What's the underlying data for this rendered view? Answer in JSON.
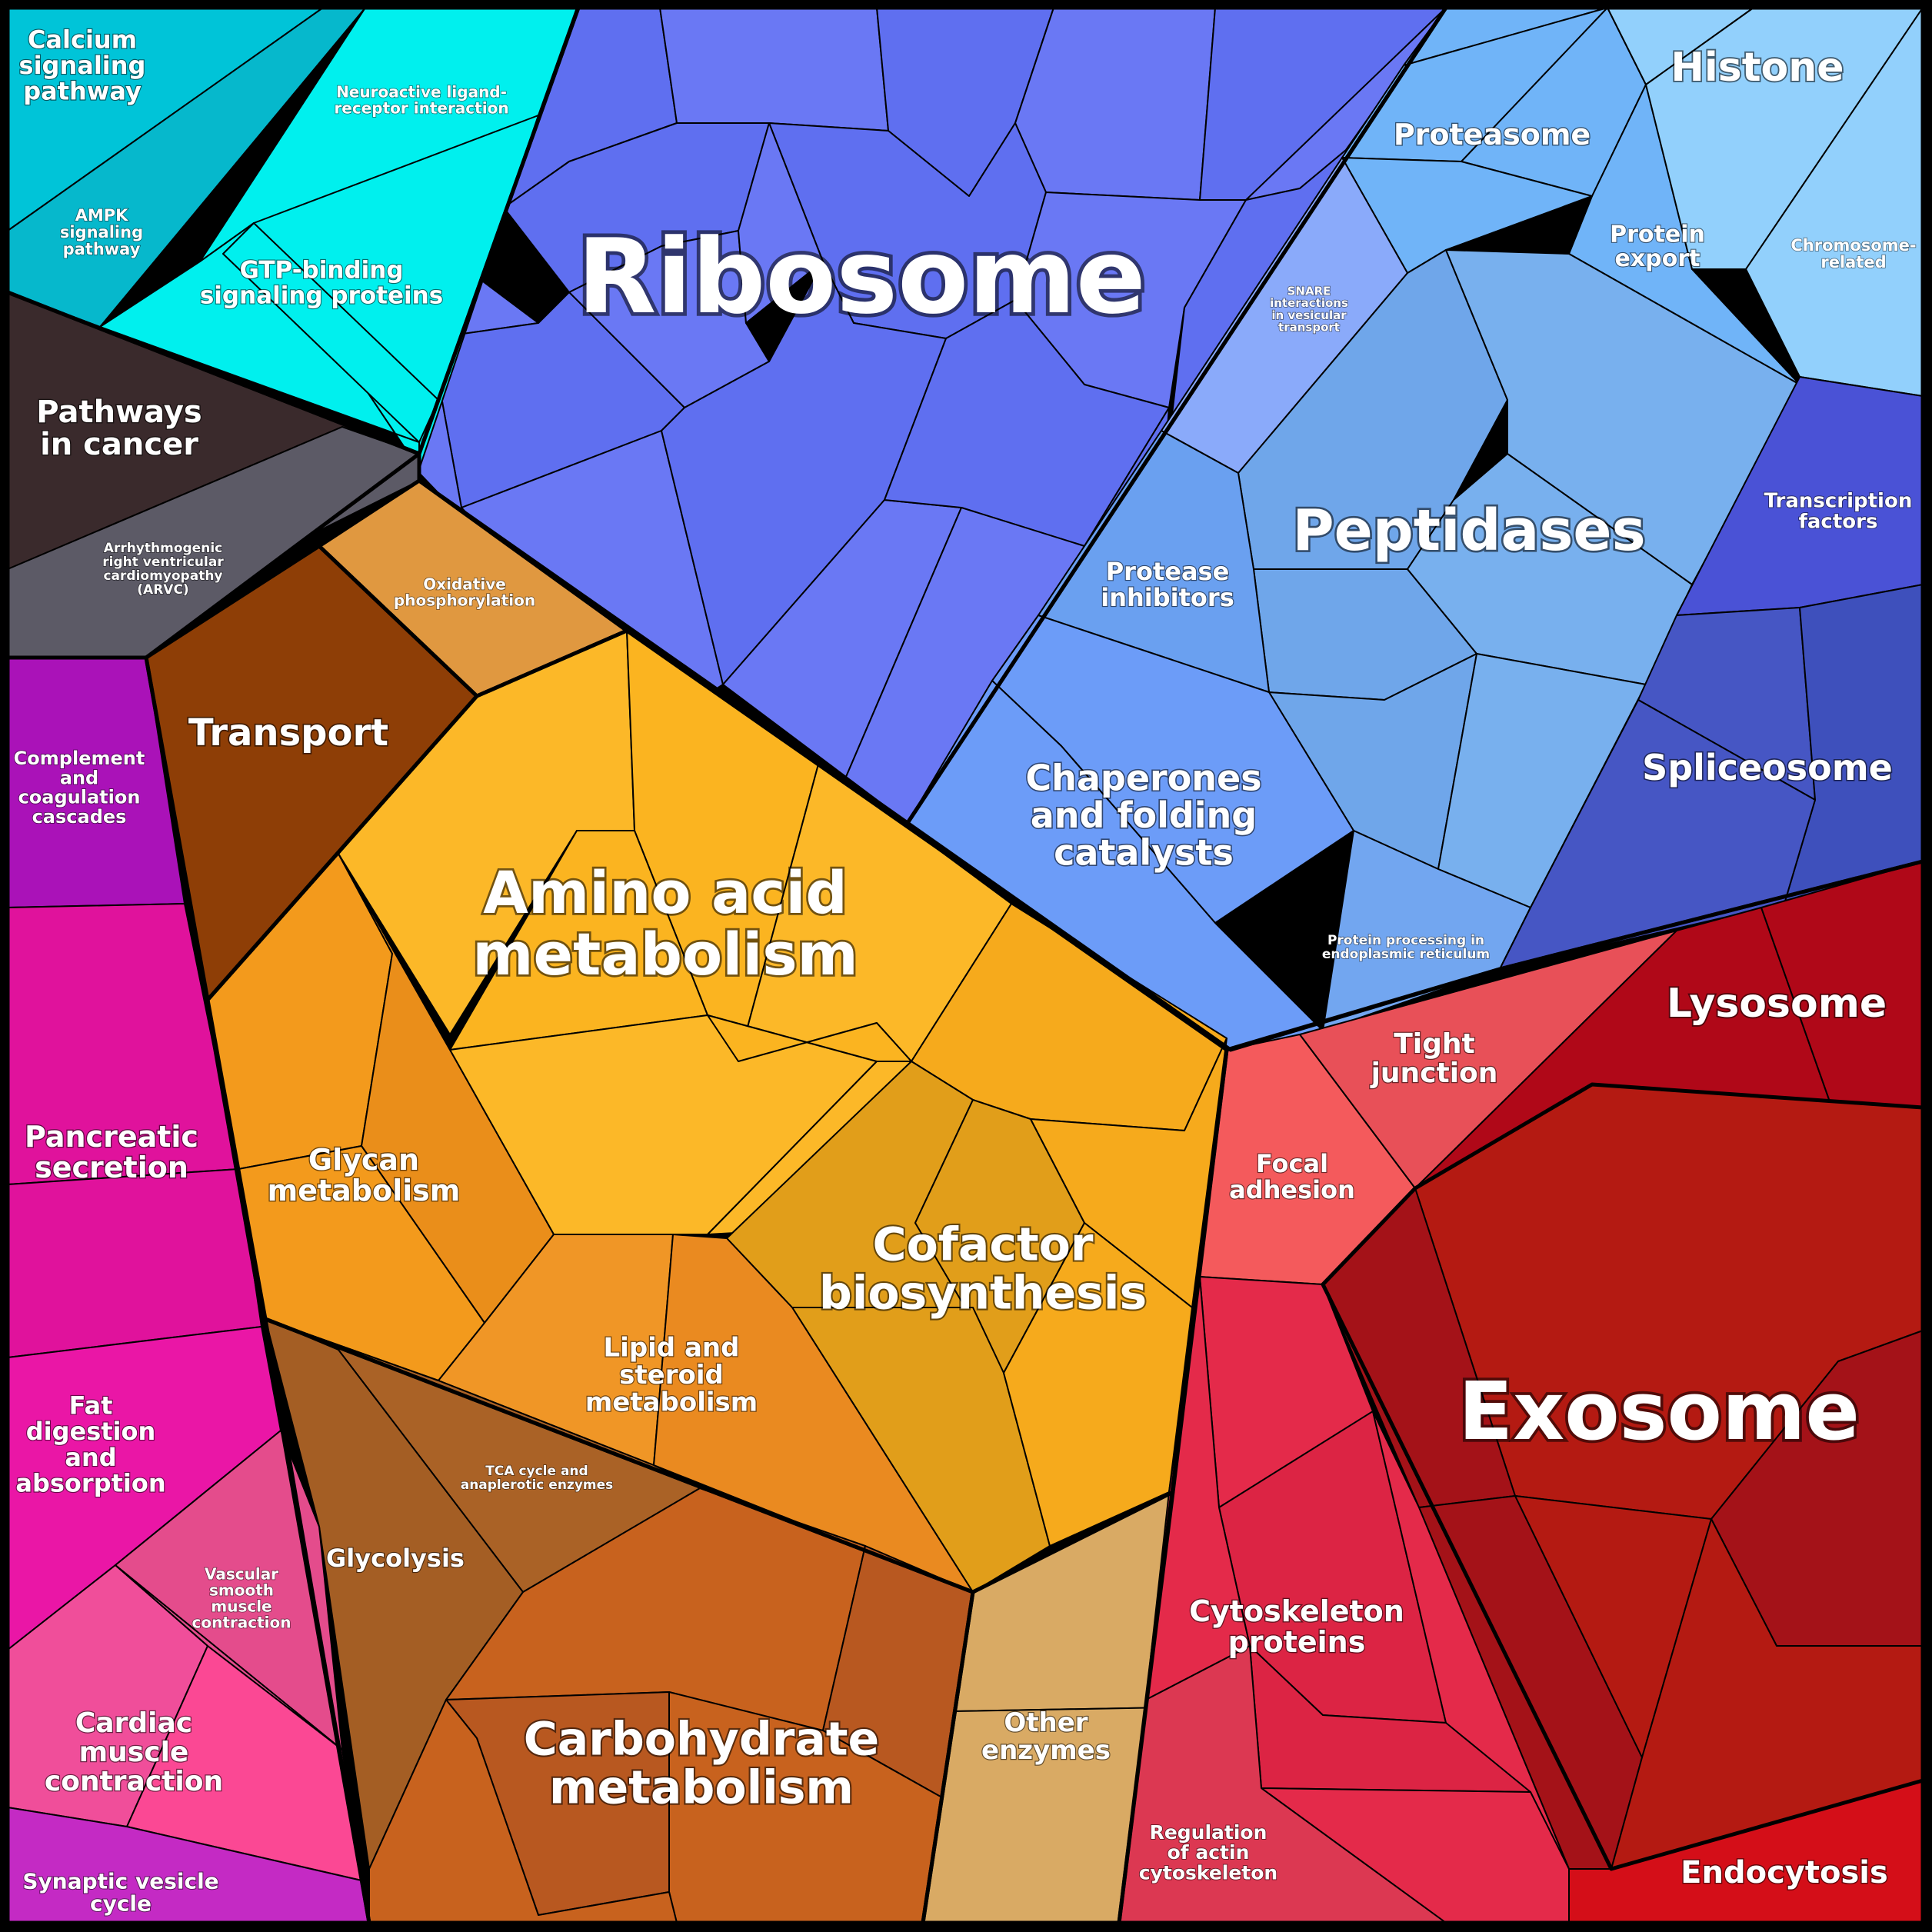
{
  "colors": {
    "ribosome": "#5f6ff0",
    "ribosome_alt": "#6a78f4",
    "peptidases": "#78b0ee",
    "peptidases_alt": "#6fa6ea",
    "proteasome": "#70b4f8",
    "histone": "#92d0fc",
    "snare": "#8aaafa",
    "protease_inhibitors": "#6aa0f0",
    "chaperones": "#6c9cf8",
    "er_processing": "#72a6f0",
    "transcription": "#4a52d6",
    "spliceosome": "#4656c4",
    "spliceosome_alt": "#3e50bc",
    "calcium": "#00c4d8",
    "calcium_alt": "#06b8cc",
    "neuroactive": "#00f0ee",
    "pathways_cancer": "#3a2a2c",
    "arvc": "#5c5a66",
    "transport": "#8e3e06",
    "oxphos": "#e09840",
    "amino": "#fcb828",
    "amino_alt": "#fbb420",
    "glycan": "#f39a1c",
    "glycan_alt": "#ea8e1a",
    "cofactor": "#f6aa1c",
    "cofactor_alt": "#e19e1a",
    "lipid": "#ea8a20",
    "lipid_alt": "#f09626",
    "tca": "#aa6226",
    "glycolysis": "#a45e24",
    "carb": "#c8621e",
    "carb_alt": "#b85820",
    "other_enzymes": "#d9aa64",
    "complement": "#aa12b8",
    "pancreatic": "#e0129c",
    "fat": "#ea16a6",
    "vascular": "#e44c8c",
    "cardiac": "#fb4894",
    "cardiac_alt": "#f04e9a",
    "synaptic": "#c42ac4",
    "focal": "#f45a5c",
    "tight": "#e85058",
    "lysosome": "#b00818",
    "exosome": "#b41a12",
    "exosome_alt": "#a41218",
    "cytoskeleton": "#e42a4a",
    "cytoskeleton_alt": "#dc2444",
    "actin": "#dc3852",
    "endocytosis": "#d40e18"
  },
  "labels": {
    "ribosome": "Ribosome",
    "peptidases": "Peptidases",
    "proteasome": "Proteasome",
    "histone": "Histone",
    "protein_export": [
      "Protein",
      "export"
    ],
    "chromosome": [
      "Chromosome-",
      "related"
    ],
    "snare": [
      "SNARE",
      "interactions",
      "in vesicular",
      "transport"
    ],
    "transcription": [
      "Transcription",
      "factors"
    ],
    "protease_inhibitors": [
      "Protease",
      "inhibitors"
    ],
    "spliceosome": "Spliceosome",
    "chaperones": [
      "Chaperones",
      "and folding",
      "catalysts"
    ],
    "er_processing": [
      "Protein processing in",
      "endoplasmic reticulum"
    ],
    "calcium": [
      "Calcium",
      "signaling",
      "pathway"
    ],
    "neuroactive": [
      "Neuroactive ligand-",
      "receptor interaction"
    ],
    "ampk": [
      "AMPK",
      "signaling",
      "pathway"
    ],
    "gtp": [
      "GTP-binding",
      "signaling proteins"
    ],
    "pathways_cancer": [
      "Pathways",
      "in cancer"
    ],
    "arvc": [
      "Arrhythmogenic",
      "right ventricular",
      "cardiomyopathy",
      "(ARVC)"
    ],
    "oxphos": [
      "Oxidative",
      "phosphorylation"
    ],
    "transport": "Transport",
    "complement": [
      "Complement",
      "and",
      "coagulation",
      "cascades"
    ],
    "amino": [
      "Amino acid",
      "metabolism"
    ],
    "glycan": [
      "Glycan",
      "metabolism"
    ],
    "cofactor": [
      "Cofactor",
      "biosynthesis"
    ],
    "lipid": [
      "Lipid and",
      "steroid",
      "metabolism"
    ],
    "tca": [
      "TCA cycle and",
      "anaplerotic enzymes"
    ],
    "glycolysis": "Glycolysis",
    "carb": [
      "Carbohydrate",
      "metabolism"
    ],
    "other_enzymes": [
      "Other",
      "enzymes"
    ],
    "pancreatic": [
      "Pancreatic",
      "secretion"
    ],
    "fat": [
      "Fat",
      "digestion",
      "and",
      "absorption"
    ],
    "vascular": [
      "Vascular",
      "smooth",
      "muscle",
      "contraction"
    ],
    "cardiac": [
      "Cardiac",
      "muscle",
      "contraction"
    ],
    "synaptic": [
      "Synaptic vesicle",
      "cycle"
    ],
    "tight": [
      "Tight",
      "junction"
    ],
    "lysosome": "Lysosome",
    "focal": [
      "Focal",
      "adhesion"
    ],
    "exosome": "Exosome",
    "cytoskeleton": [
      "Cytoskeleton",
      "proteins"
    ],
    "actin": [
      "Regulation",
      "of actin",
      "cytoskeleton"
    ],
    "endocytosis": "Endocytosis"
  }
}
